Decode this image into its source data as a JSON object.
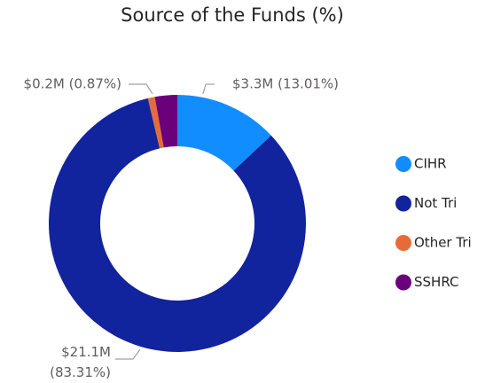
{
  "chart_data": {
    "type": "pie",
    "title": "Source of the Funds (%)",
    "categories": [
      "CIHR",
      "Not Tri",
      "Other Tri",
      "SSHRC"
    ],
    "values": [
      13.01,
      83.31,
      0.87,
      2.81
    ],
    "value_labels": [
      "$3.3M (13.01%)",
      "$21.1M (83.31%)",
      "$0.2M (0.87%)",
      null
    ],
    "colors": [
      "#118DFF",
      "#12239E",
      "#E66C37",
      "#6B007B"
    ],
    "donut": true,
    "legend": "right"
  }
}
